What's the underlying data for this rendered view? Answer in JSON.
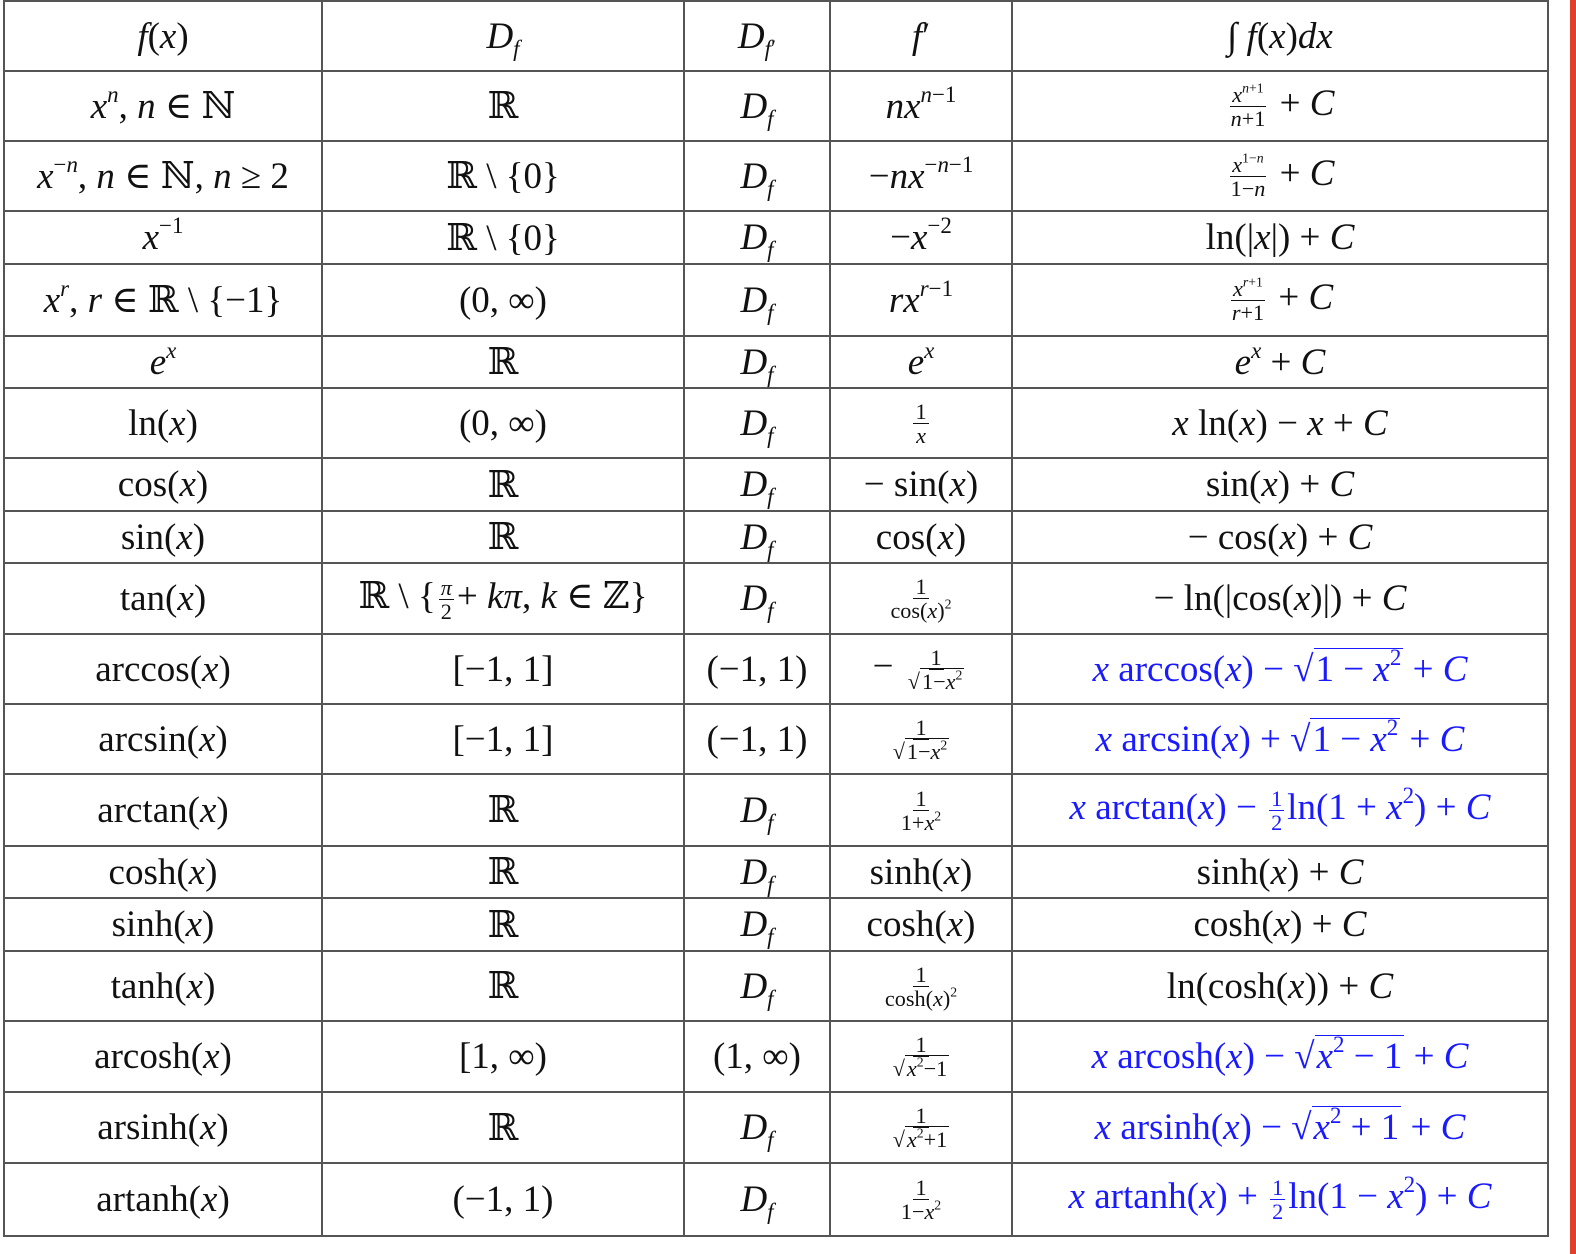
{
  "accent_colors": {
    "highlight_text": "#1a1aff",
    "edge_bar": "#e0402c"
  },
  "header": [
    [
      {
        "i": "f"
      },
      "(",
      {
        "i": "x"
      },
      ")"
    ],
    [
      {
        "i": "D"
      },
      {
        "sub": [
          {
            "i": "f"
          }
        ]
      }
    ],
    [
      {
        "i": "D"
      },
      {
        "sub": [
          {
            "i": "f"
          },
          "′"
        ]
      }
    ],
    [
      {
        "i": "f"
      },
      "′"
    ],
    [
      "∫ ",
      {
        "i": "f"
      },
      "(",
      {
        "i": "x"
      },
      ")",
      {
        "i": "dx"
      }
    ]
  ],
  "rows": [
    {
      "cells": [
        [
          {
            "i": "x"
          },
          {
            "sup": [
              {
                "i": "n"
              }
            ]
          },
          ", ",
          {
            "i": "n"
          },
          " ∈ ℕ"
        ],
        [
          "ℝ"
        ],
        [
          {
            "i": "D"
          },
          {
            "sub": [
              {
                "i": "f"
              }
            ]
          }
        ],
        [
          {
            "i": "nx"
          },
          {
            "sup": [
              {
                "i": "n"
              },
              "−1"
            ]
          }
        ],
        [
          {
            "frac": [
              [
                {
                  "i": "x"
                },
                {
                  "sup": [
                    {
                      "i": "n"
                    },
                    "+1"
                  ]
                }
              ],
              [
                {
                  "i": "n"
                },
                "+1"
              ]
            ]
          },
          " + ",
          {
            "i": "C"
          }
        ]
      ]
    },
    {
      "cells": [
        [
          {
            "i": "x"
          },
          {
            "sup": [
              "−",
              {
                "i": "n"
              }
            ]
          },
          ", ",
          {
            "i": "n"
          },
          " ∈ ℕ, ",
          {
            "i": "n"
          },
          " ≥ 2"
        ],
        [
          "ℝ \\ {0}"
        ],
        [
          {
            "i": "D"
          },
          {
            "sub": [
              {
                "i": "f"
              }
            ]
          }
        ],
        [
          "−",
          {
            "i": "nx"
          },
          {
            "sup": [
              "−",
              {
                "i": "n"
              },
              "−1"
            ]
          }
        ],
        [
          {
            "frac": [
              [
                {
                  "i": "x"
                },
                {
                  "sup": [
                    "1−",
                    {
                      "i": "n"
                    }
                  ]
                }
              ],
              [
                "1−",
                {
                  "i": "n"
                }
              ]
            ]
          },
          " + ",
          {
            "i": "C"
          }
        ]
      ]
    },
    {
      "cells": [
        [
          {
            "i": "x"
          },
          {
            "sup": [
              "−1"
            ]
          }
        ],
        [
          "ℝ \\ {0}"
        ],
        [
          {
            "i": "D"
          },
          {
            "sub": [
              {
                "i": "f"
              }
            ]
          }
        ],
        [
          "−",
          {
            "i": "x"
          },
          {
            "sup": [
              "−2"
            ]
          }
        ],
        [
          "ln(|",
          {
            "i": "x"
          },
          "|) + ",
          {
            "i": "C"
          }
        ]
      ]
    },
    {
      "cells": [
        [
          {
            "i": "x"
          },
          {
            "sup": [
              {
                "i": "r"
              }
            ]
          },
          ", ",
          {
            "i": "r"
          },
          " ∈ ℝ \\ {−1}"
        ],
        [
          "(0, ∞)"
        ],
        [
          {
            "i": "D"
          },
          {
            "sub": [
              {
                "i": "f"
              }
            ]
          }
        ],
        [
          {
            "i": "rx"
          },
          {
            "sup": [
              {
                "i": "r"
              },
              "−1"
            ]
          }
        ],
        [
          {
            "frac": [
              [
                {
                  "i": "x"
                },
                {
                  "sup": [
                    {
                      "i": "r"
                    },
                    "+1"
                  ]
                }
              ],
              [
                {
                  "i": "r"
                },
                "+1"
              ]
            ]
          },
          " + ",
          {
            "i": "C"
          }
        ]
      ]
    },
    {
      "cells": [
        [
          {
            "i": "e"
          },
          {
            "sup": [
              {
                "i": "x"
              }
            ]
          }
        ],
        [
          "ℝ"
        ],
        [
          {
            "i": "D"
          },
          {
            "sub": [
              {
                "i": "f"
              }
            ]
          }
        ],
        [
          {
            "i": "e"
          },
          {
            "sup": [
              {
                "i": "x"
              }
            ]
          }
        ],
        [
          {
            "i": "e"
          },
          {
            "sup": [
              {
                "i": "x"
              }
            ]
          },
          " + ",
          {
            "i": "C"
          }
        ]
      ]
    },
    {
      "cells": [
        [
          "ln(",
          {
            "i": "x"
          },
          ")"
        ],
        [
          "(0, ∞)"
        ],
        [
          {
            "i": "D"
          },
          {
            "sub": [
              {
                "i": "f"
              }
            ]
          }
        ],
        [
          {
            "frac": [
              [
                "1"
              ],
              [
                {
                  "i": "x"
                }
              ]
            ]
          }
        ],
        [
          {
            "i": "x"
          },
          " ln(",
          {
            "i": "x"
          },
          ") − ",
          {
            "i": "x"
          },
          " + ",
          {
            "i": "C"
          }
        ]
      ]
    },
    {
      "cells": [
        [
          "cos(",
          {
            "i": "x"
          },
          ")"
        ],
        [
          "ℝ"
        ],
        [
          {
            "i": "D"
          },
          {
            "sub": [
              {
                "i": "f"
              }
            ]
          }
        ],
        [
          "− sin(",
          {
            "i": "x"
          },
          ")"
        ],
        [
          "sin(",
          {
            "i": "x"
          },
          ") + ",
          {
            "i": "C"
          }
        ]
      ]
    },
    {
      "cells": [
        [
          "sin(",
          {
            "i": "x"
          },
          ")"
        ],
        [
          "ℝ"
        ],
        [
          {
            "i": "D"
          },
          {
            "sub": [
              {
                "i": "f"
              }
            ]
          }
        ],
        [
          "cos(",
          {
            "i": "x"
          },
          ")"
        ],
        [
          "− cos(",
          {
            "i": "x"
          },
          ") + ",
          {
            "i": "C"
          }
        ]
      ]
    },
    {
      "cells": [
        [
          "tan(",
          {
            "i": "x"
          },
          ")"
        ],
        [
          "ℝ \\ {",
          {
            "frac": [
              [
                {
                  "i": "π"
                }
              ],
              [
                "2"
              ]
            ]
          },
          "+ ",
          {
            "i": "kπ"
          },
          ", ",
          {
            "i": "k"
          },
          " ∈ ℤ}"
        ],
        [
          {
            "i": "D"
          },
          {
            "sub": [
              {
                "i": "f"
              }
            ]
          }
        ],
        [
          {
            "frac": [
              [
                "1"
              ],
              [
                "cos(",
                {
                  "i": "x"
                },
                ")",
                {
                  "sup": [
                    "2"
                  ]
                }
              ]
            ]
          }
        ],
        [
          "− ln(|cos(",
          {
            "i": "x"
          },
          ")|) + ",
          {
            "i": "C"
          }
        ]
      ]
    },
    {
      "highlight": true,
      "cells": [
        [
          "arccos(",
          {
            "i": "x"
          },
          ")"
        ],
        [
          "[−1, 1]"
        ],
        [
          "(−1, 1)"
        ],
        [
          "− ",
          {
            "frac": [
              [
                "1"
              ],
              [
                {
                  "sqrt": [
                    "1−",
                    {
                      "i": "x"
                    },
                    {
                      "sup": [
                        "2"
                      ]
                    }
                  ]
                }
              ]
            ]
          }
        ],
        [
          {
            "i": "x"
          },
          " arccos(",
          {
            "i": "x"
          },
          ") − ",
          {
            "sqrt": [
              "1 − ",
              {
                "i": "x"
              },
              {
                "sup": [
                  "2"
                ]
              }
            ]
          },
          " + ",
          {
            "i": "C"
          }
        ]
      ]
    },
    {
      "highlight": true,
      "cells": [
        [
          "arcsin(",
          {
            "i": "x"
          },
          ")"
        ],
        [
          "[−1, 1]"
        ],
        [
          "(−1, 1)"
        ],
        [
          {
            "frac": [
              [
                "1"
              ],
              [
                {
                  "sqrt": [
                    "1−",
                    {
                      "i": "x"
                    },
                    {
                      "sup": [
                        "2"
                      ]
                    }
                  ]
                }
              ]
            ]
          }
        ],
        [
          {
            "i": "x"
          },
          " arcsin(",
          {
            "i": "x"
          },
          ") + ",
          {
            "sqrt": [
              "1 − ",
              {
                "i": "x"
              },
              {
                "sup": [
                  "2"
                ]
              }
            ]
          },
          " + ",
          {
            "i": "C"
          }
        ]
      ]
    },
    {
      "highlight": true,
      "cells": [
        [
          "arctan(",
          {
            "i": "x"
          },
          ")"
        ],
        [
          "ℝ"
        ],
        [
          {
            "i": "D"
          },
          {
            "sub": [
              {
                "i": "f"
              }
            ]
          }
        ],
        [
          {
            "frac": [
              [
                "1"
              ],
              [
                "1+",
                {
                  "i": "x"
                },
                {
                  "sup": [
                    "2"
                  ]
                }
              ]
            ]
          }
        ],
        [
          {
            "i": "x"
          },
          " arctan(",
          {
            "i": "x"
          },
          ") − ",
          {
            "frac": [
              [
                "1"
              ],
              [
                "2"
              ]
            ]
          },
          "ln(1 + ",
          {
            "i": "x"
          },
          {
            "sup": [
              "2"
            ]
          },
          ") + ",
          {
            "i": "C"
          }
        ]
      ]
    },
    {
      "cells": [
        [
          "cosh(",
          {
            "i": "x"
          },
          ")"
        ],
        [
          "ℝ"
        ],
        [
          {
            "i": "D"
          },
          {
            "sub": [
              {
                "i": "f"
              }
            ]
          }
        ],
        [
          "sinh(",
          {
            "i": "x"
          },
          ")"
        ],
        [
          "sinh(",
          {
            "i": "x"
          },
          ") + ",
          {
            "i": "C"
          }
        ]
      ]
    },
    {
      "cells": [
        [
          "sinh(",
          {
            "i": "x"
          },
          ")"
        ],
        [
          "ℝ"
        ],
        [
          {
            "i": "D"
          },
          {
            "sub": [
              {
                "i": "f"
              }
            ]
          }
        ],
        [
          "cosh(",
          {
            "i": "x"
          },
          ")"
        ],
        [
          "cosh(",
          {
            "i": "x"
          },
          ") + ",
          {
            "i": "C"
          }
        ]
      ]
    },
    {
      "cells": [
        [
          "tanh(",
          {
            "i": "x"
          },
          ")"
        ],
        [
          "ℝ"
        ],
        [
          {
            "i": "D"
          },
          {
            "sub": [
              {
                "i": "f"
              }
            ]
          }
        ],
        [
          {
            "frac": [
              [
                "1"
              ],
              [
                "cosh(",
                {
                  "i": "x"
                },
                ")",
                {
                  "sup": [
                    "2"
                  ]
                }
              ]
            ]
          }
        ],
        [
          "ln(cosh(",
          {
            "i": "x"
          },
          ")) + ",
          {
            "i": "C"
          }
        ]
      ]
    },
    {
      "highlight": true,
      "cells": [
        [
          "arcosh(",
          {
            "i": "x"
          },
          ")"
        ],
        [
          "[1, ∞)"
        ],
        [
          "(1, ∞)"
        ],
        [
          {
            "frac": [
              [
                "1"
              ],
              [
                {
                  "sqrt": [
                    {
                      "i": "x"
                    },
                    {
                      "sup": [
                        "2"
                      ]
                    },
                    "−1"
                  ]
                }
              ]
            ]
          }
        ],
        [
          {
            "i": "x"
          },
          " arcosh(",
          {
            "i": "x"
          },
          ") − ",
          {
            "sqrt": [
              {
                "i": "x"
              },
              {
                "sup": [
                  "2"
                ]
              },
              " − 1"
            ]
          },
          " + ",
          {
            "i": "C"
          }
        ]
      ]
    },
    {
      "highlight": true,
      "cells": [
        [
          "arsinh(",
          {
            "i": "x"
          },
          ")"
        ],
        [
          "ℝ"
        ],
        [
          {
            "i": "D"
          },
          {
            "sub": [
              {
                "i": "f"
              }
            ]
          }
        ],
        [
          {
            "frac": [
              [
                "1"
              ],
              [
                {
                  "sqrt": [
                    {
                      "i": "x"
                    },
                    {
                      "sup": [
                        "2"
                      ]
                    },
                    "+1"
                  ]
                }
              ]
            ]
          }
        ],
        [
          {
            "i": "x"
          },
          " arsinh(",
          {
            "i": "x"
          },
          ") − ",
          {
            "sqrt": [
              {
                "i": "x"
              },
              {
                "sup": [
                  "2"
                ]
              },
              " + 1"
            ]
          },
          " + ",
          {
            "i": "C"
          }
        ]
      ]
    },
    {
      "highlight": true,
      "cells": [
        [
          "artanh(",
          {
            "i": "x"
          },
          ")"
        ],
        [
          "(−1, 1)"
        ],
        [
          {
            "i": "D"
          },
          {
            "sub": [
              {
                "i": "f"
              }
            ]
          }
        ],
        [
          {
            "frac": [
              [
                "1"
              ],
              [
                "1−",
                {
                  "i": "x"
                },
                {
                  "sup": [
                    "2"
                  ]
                }
              ]
            ]
          }
        ],
        [
          {
            "i": "x"
          },
          " artanh(",
          {
            "i": "x"
          },
          ") + ",
          {
            "frac": [
              [
                "1"
              ],
              [
                "2"
              ]
            ]
          },
          "ln(1 − ",
          {
            "i": "x"
          },
          {
            "sup": [
              "2"
            ]
          },
          ") + ",
          {
            "i": "C"
          }
        ]
      ]
    }
  ]
}
